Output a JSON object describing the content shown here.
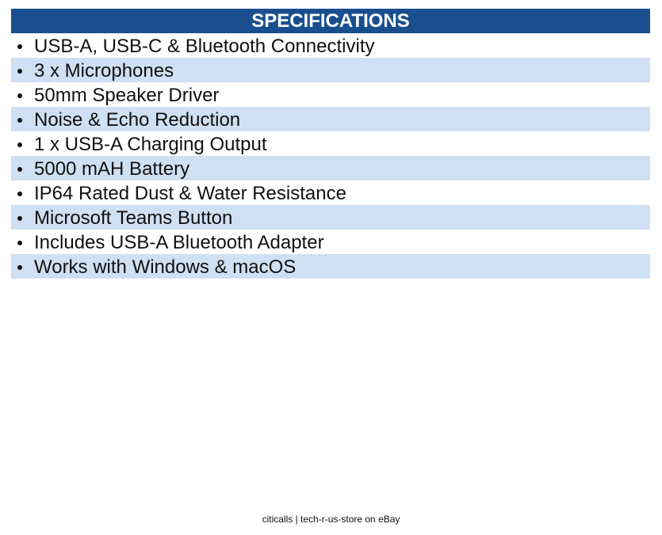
{
  "header": {
    "title": "SPECIFICATIONS"
  },
  "items": [
    "USB-A, USB-C & Bluetooth Connectivity",
    "3 x Microphones",
    "50mm Speaker Driver",
    "Noise & Echo Reduction",
    "1 x USB-A Charging Output",
    "5000 mAH Battery",
    "IP64 Rated Dust & Water Resistance",
    "Microsoft Teams Button",
    "Includes USB-A Bluetooth Adapter",
    "Works with Windows & macOS"
  ],
  "footer": {
    "text": "citicalls | tech-r-us-store on eBay"
  }
}
